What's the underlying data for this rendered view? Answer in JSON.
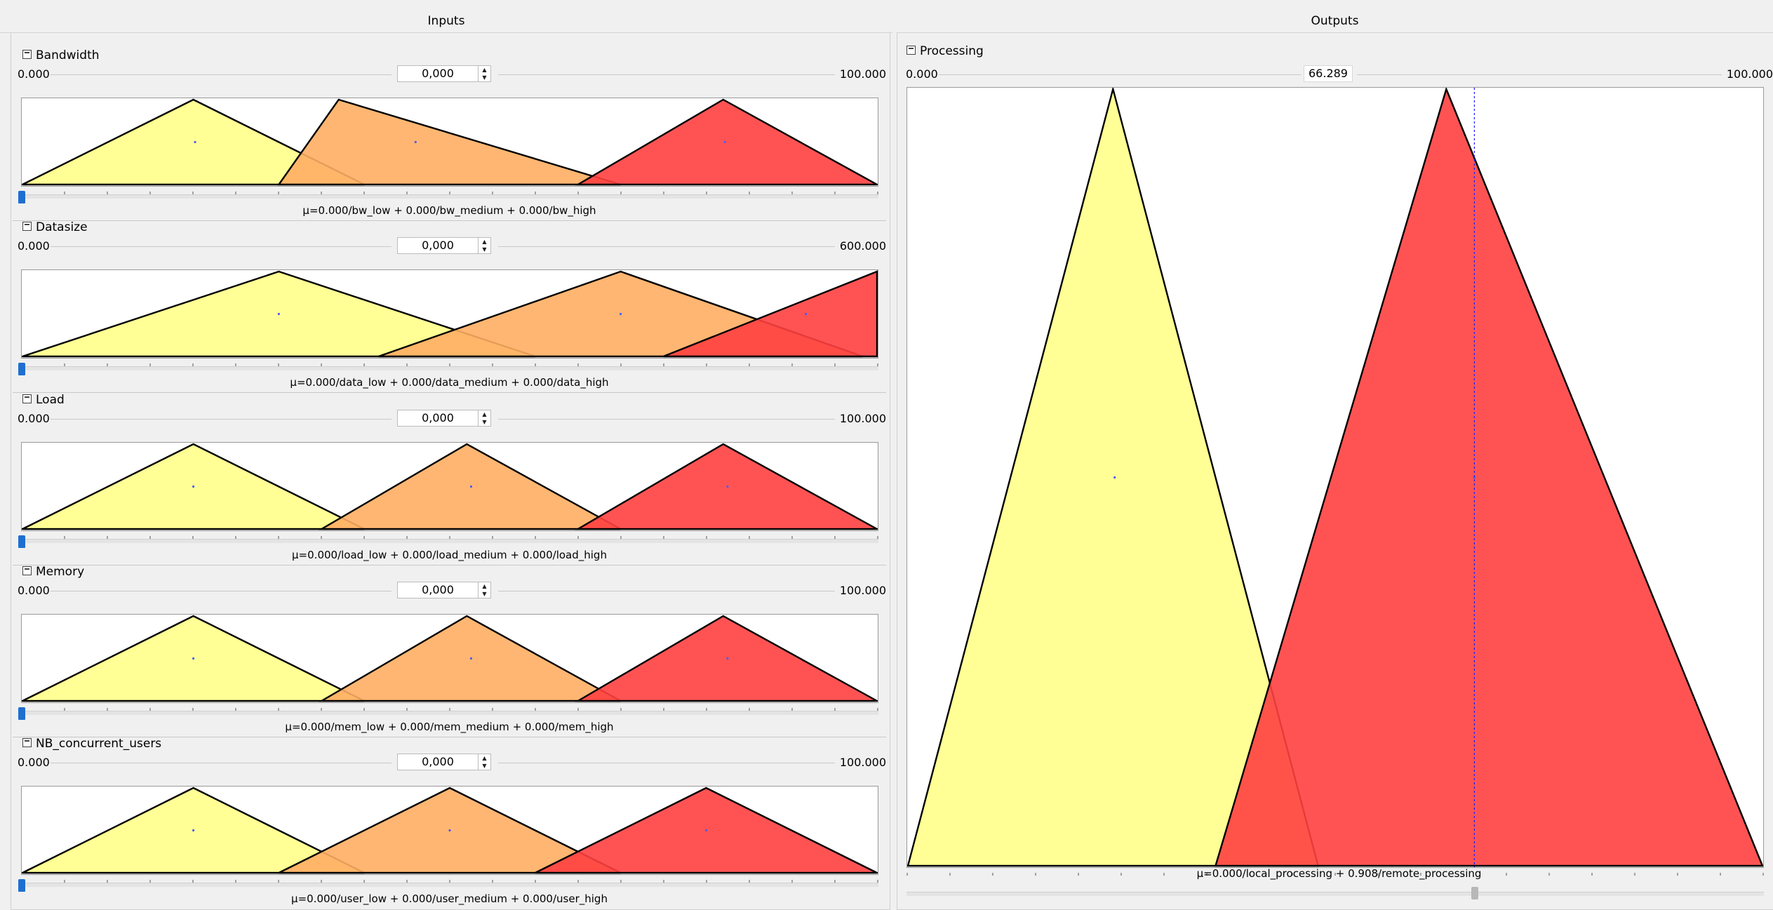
{
  "panels": {
    "inputs_title": "Inputs",
    "outputs_title": "Outputs"
  },
  "colors": {
    "low": "#ffff8a",
    "medium": "#ffae63",
    "high": "#ff4040",
    "marker": "#4a5cff",
    "slider_active": "#1f6fd0"
  },
  "inputs": [
    {
      "name": "Bandwidth",
      "min": "0.000",
      "max": "100.000",
      "value": "0,000",
      "range": [
        0,
        100
      ],
      "current": 0,
      "terms": [
        {
          "label": "bw_low",
          "kind": "low",
          "points": [
            0,
            20,
            40
          ],
          "marker": 20.2
        },
        {
          "label": "bw_medium",
          "kind": "medium",
          "points": [
            30,
            37,
            70
          ],
          "marker": 46
        },
        {
          "label": "bw_high",
          "kind": "high",
          "points": [
            65,
            82,
            100
          ],
          "marker": 82.2
        }
      ],
      "mu": "μ=0.000/bw_low + 0.000/bw_medium + 0.000/bw_high"
    },
    {
      "name": "Datasize",
      "min": "0.000",
      "max": "600.000",
      "value": "0,000",
      "range": [
        0,
        600
      ],
      "current": 0,
      "terms": [
        {
          "label": "data_low",
          "kind": "low",
          "points": [
            0,
            180,
            360
          ],
          "marker": 180
        },
        {
          "label": "data_medium",
          "kind": "medium",
          "points": [
            250,
            420,
            590
          ],
          "marker": 420
        },
        {
          "label": "data_high",
          "kind": "high",
          "points": [
            450,
            600,
            600
          ],
          "marker": 550
        }
      ],
      "mu": "μ=0.000/data_low + 0.000/data_medium + 0.000/data_high"
    },
    {
      "name": "Load",
      "min": "0.000",
      "max": "100.000",
      "value": "0,000",
      "range": [
        0,
        100
      ],
      "current": 0,
      "terms": [
        {
          "label": "load_low",
          "kind": "low",
          "points": [
            0,
            20,
            40
          ],
          "marker": 20
        },
        {
          "label": "load_medium",
          "kind": "medium",
          "points": [
            35,
            52,
            70
          ],
          "marker": 52.5
        },
        {
          "label": "load_high",
          "kind": "high",
          "points": [
            65,
            82,
            100
          ],
          "marker": 82.5
        }
      ],
      "mu": "μ=0.000/load_low + 0.000/load_medium + 0.000/load_high"
    },
    {
      "name": "Memory",
      "min": "0.000",
      "max": "100.000",
      "value": "0,000",
      "range": [
        0,
        100
      ],
      "current": 0,
      "terms": [
        {
          "label": "mem_low",
          "kind": "low",
          "points": [
            0,
            20,
            40
          ],
          "marker": 20
        },
        {
          "label": "mem_medium",
          "kind": "medium",
          "points": [
            35,
            52,
            70
          ],
          "marker": 52.5
        },
        {
          "label": "mem_high",
          "kind": "high",
          "points": [
            65,
            82,
            100
          ],
          "marker": 82.5
        }
      ],
      "mu": "μ=0.000/mem_low + 0.000/mem_medium + 0.000/mem_high"
    },
    {
      "name": "NB_concurrent_users",
      "min": "0.000",
      "max": "100.000",
      "value": "0,000",
      "range": [
        0,
        100
      ],
      "current": 0,
      "terms": [
        {
          "label": "user_low",
          "kind": "low",
          "points": [
            0,
            20,
            40
          ],
          "marker": 20
        },
        {
          "label": "user_medium",
          "kind": "medium",
          "points": [
            30,
            50,
            70
          ],
          "marker": 50
        },
        {
          "label": "user_high",
          "kind": "high",
          "points": [
            60,
            80,
            100
          ],
          "marker": 80
        }
      ],
      "mu": "μ=0.000/user_low + 0.000/user_medium + 0.000/user_high"
    }
  ],
  "output": {
    "name": "Processing",
    "min": "0.000",
    "max": "100.000",
    "value": "66.289",
    "range": [
      0,
      100
    ],
    "current": 66.289,
    "terms": [
      {
        "label": "local_processing",
        "kind": "low",
        "points": [
          0,
          24,
          48
        ],
        "marker": 24.2
      },
      {
        "label": "remote_processing",
        "kind": "high",
        "points": [
          36,
          63,
          100
        ],
        "marker": 66.3
      }
    ],
    "mu": "μ=0.000/local_processing + 0.908/remote_processing"
  }
}
